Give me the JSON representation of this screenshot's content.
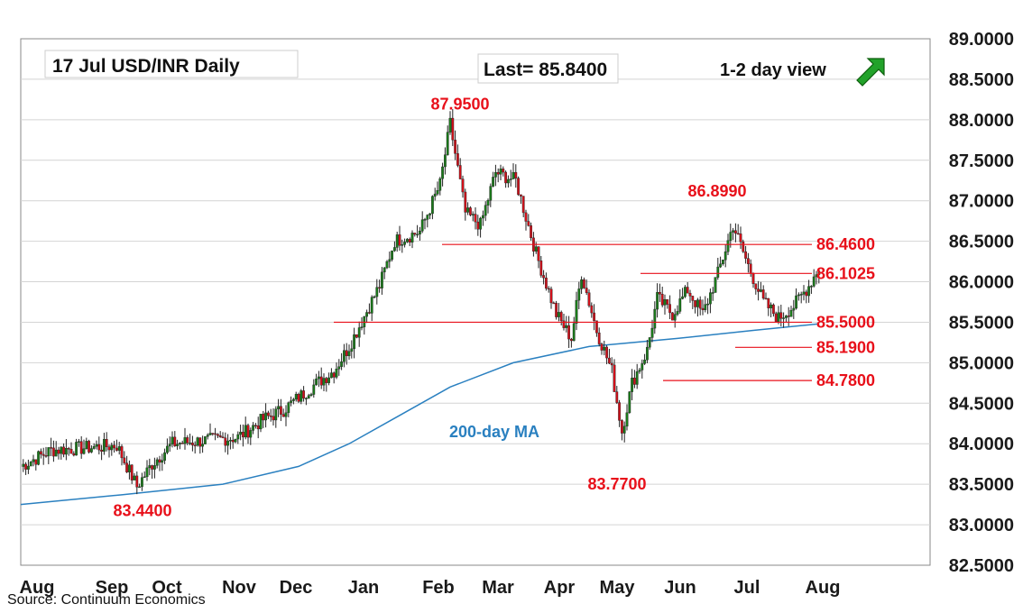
{
  "header": {
    "title": "17 Jul  USD/INR  Daily",
    "last": "Last= 85.8400",
    "view": "1-2 day view"
  },
  "source": "Source: Continuum Economics",
  "colors": {
    "up": "#1a7a1a",
    "down": "#d0101a",
    "level": "#e8101a",
    "ma": "#2a80c0",
    "arrow": "#22a22a",
    "grid": "#d4d4d4"
  },
  "chart_data": {
    "type": "candlestick",
    "ylim": [
      82.5,
      89.0
    ],
    "yticks": [
      "89.0000",
      "88.5000",
      "88.0000",
      "87.5000",
      "87.0000",
      "86.5000",
      "86.0000",
      "85.5000",
      "85.0000",
      "84.5000",
      "84.0000",
      "83.5000",
      "83.0000",
      "82.5000"
    ],
    "months": [
      "Aug",
      "Sep",
      "Oct",
      "Nov",
      "Dec",
      "Jan",
      "Feb",
      "Mar",
      "Apr",
      "May",
      "Jun",
      "Jul",
      "Aug"
    ],
    "ma_label": "200-day MA",
    "levels": [
      {
        "value": 86.46,
        "label": "86.4600"
      },
      {
        "value": 86.1025,
        "label": "86.1025"
      },
      {
        "value": 85.5,
        "label": "85.5000"
      },
      {
        "value": 85.19,
        "label": "85.1900"
      },
      {
        "value": 84.78,
        "label": "84.7800"
      }
    ],
    "annotations": [
      {
        "label": "87.9500",
        "value": 87.95
      },
      {
        "label": "86.8990",
        "value": 86.899
      },
      {
        "label": "83.7700",
        "value": 83.77
      },
      {
        "label": "83.4400",
        "value": 83.44
      }
    ],
    "anchors": [
      [
        0,
        83.72
      ],
      [
        12,
        83.92
      ],
      [
        26,
        83.95
      ],
      [
        38,
        83.98
      ],
      [
        46,
        83.47
      ],
      [
        52,
        83.75
      ],
      [
        60,
        84.0
      ],
      [
        86,
        84.08
      ],
      [
        96,
        84.3
      ],
      [
        104,
        84.42
      ],
      [
        116,
        84.72
      ],
      [
        124,
        84.9
      ],
      [
        130,
        85.2
      ],
      [
        134,
        85.45
      ],
      [
        142,
        85.95
      ],
      [
        148,
        86.5
      ],
      [
        158,
        86.62
      ],
      [
        166,
        87.2
      ],
      [
        170,
        87.95
      ],
      [
        176,
        86.85
      ],
      [
        182,
        86.7
      ],
      [
        188,
        87.35
      ],
      [
        196,
        87.25
      ],
      [
        204,
        86.35
      ],
      [
        212,
        85.6
      ],
      [
        218,
        85.3
      ],
      [
        222,
        86.1
      ],
      [
        228,
        85.4
      ],
      [
        234,
        84.9
      ],
      [
        238,
        84.15
      ],
      [
        242,
        84.75
      ],
      [
        248,
        85.15
      ],
      [
        252,
        85.8
      ],
      [
        258,
        85.6
      ],
      [
        264,
        85.9
      ],
      [
        270,
        85.6
      ],
      [
        276,
        86.1
      ],
      [
        282,
        86.7
      ],
      [
        288,
        86.2
      ],
      [
        294,
        85.75
      ],
      [
        300,
        85.55
      ],
      [
        306,
        85.7
      ],
      [
        312,
        85.95
      ],
      [
        316,
        86.18
      ]
    ],
    "ma": [
      [
        0,
        83.25
      ],
      [
        40,
        83.37
      ],
      [
        80,
        83.5
      ],
      [
        110,
        83.72
      ],
      [
        130,
        84.0
      ],
      [
        150,
        84.35
      ],
      [
        170,
        84.7
      ],
      [
        195,
        85.0
      ],
      [
        225,
        85.2
      ],
      [
        260,
        85.3
      ],
      [
        290,
        85.4
      ],
      [
        316,
        85.48
      ]
    ]
  }
}
